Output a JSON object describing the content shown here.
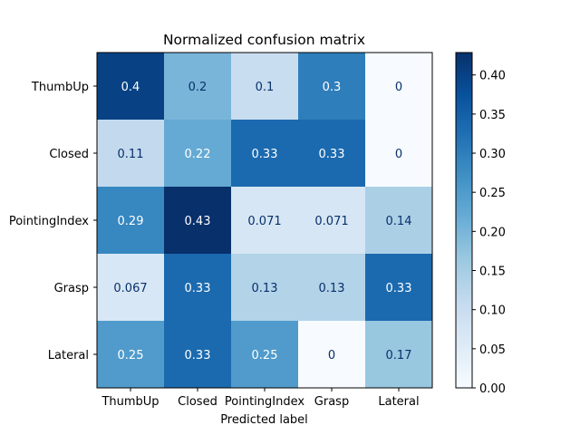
{
  "chart_data": {
    "type": "heatmap",
    "title": "Normalized confusion matrix",
    "xlabel": "Predicted label",
    "ylabel": "",
    "x_categories": [
      "ThumbUp",
      "Closed",
      "PointingIndex",
      "Grasp",
      "Lateral"
    ],
    "y_categories": [
      "ThumbUp",
      "Closed",
      "PointingIndex",
      "Grasp",
      "Lateral"
    ],
    "values": [
      [
        0.4,
        0.2,
        0.1,
        0.3,
        0
      ],
      [
        0.1111,
        0.2222,
        0.3333,
        0.3333,
        0
      ],
      [
        0.2857,
        0.4286,
        0.0714,
        0.0714,
        0.1429
      ],
      [
        0.0667,
        0.3333,
        0.1333,
        0.1333,
        0.3333
      ],
      [
        0.25,
        0.3333,
        0.25,
        0,
        0.1667
      ]
    ],
    "value_labels": [
      [
        "0.4",
        "0.2",
        "0.1",
        "0.3",
        "0"
      ],
      [
        "0.11",
        "0.22",
        "0.33",
        "0.33",
        "0"
      ],
      [
        "0.29",
        "0.43",
        "0.071",
        "0.071",
        "0.14"
      ],
      [
        "0.067",
        "0.33",
        "0.13",
        "0.13",
        "0.33"
      ],
      [
        "0.25",
        "0.33",
        "0.25",
        "0",
        "0.17"
      ]
    ],
    "colormap": "Blues",
    "colorbar": {
      "range": [
        0,
        0.4286
      ],
      "ticks": [
        "0.00",
        "0.05",
        "0.10",
        "0.15",
        "0.20",
        "0.25",
        "0.30",
        "0.35",
        "0.40"
      ]
    },
    "grid": false
  }
}
